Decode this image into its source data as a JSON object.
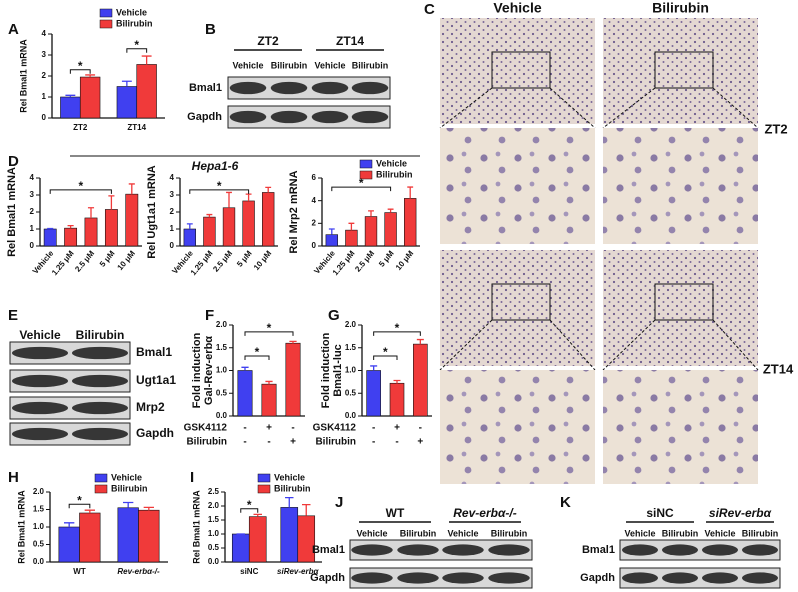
{
  "panel_letters": [
    "A",
    "B",
    "C",
    "D",
    "E",
    "F",
    "G",
    "H",
    "I",
    "J",
    "K"
  ],
  "hepa_label": "Hepa1-6",
  "chart_data": [
    {
      "type": "bar",
      "ylabel": "Rel Bmal1 mRNA",
      "categories": [
        "ZT2",
        "ZT14"
      ],
      "series": [
        {
          "name": "Vehicle",
          "color": "#4040f0",
          "values": [
            1.0,
            1.5
          ],
          "errors": [
            0.08,
            0.25
          ]
        },
        {
          "name": "Bilirubin",
          "color": "#f03a3a",
          "values": [
            1.95,
            2.55
          ],
          "errors": [
            0.1,
            0.4
          ]
        }
      ],
      "ylim": [
        0,
        4
      ],
      "yticks": [
        0,
        1,
        2,
        3,
        4
      ],
      "annotations": [
        "*",
        "*"
      ]
    },
    {
      "type": "bar",
      "ylabel": "Rel Bmal1 mRNA",
      "categories": [
        "Vehicle",
        "1.25 μM",
        "2.5 μM",
        "5 μM",
        "10 μM"
      ],
      "values": [
        1.0,
        1.05,
        1.65,
        2.15,
        3.05
      ],
      "errors": [
        0.03,
        0.15,
        0.6,
        0.8,
        0.6
      ],
      "colors": [
        "#4040f0",
        "#f03a3a",
        "#f03a3a",
        "#f03a3a",
        "#f03a3a"
      ],
      "ylim": [
        0,
        4
      ],
      "yticks": [
        0,
        1,
        2,
        3,
        4
      ],
      "annotations": [
        "*"
      ]
    },
    {
      "type": "bar",
      "ylabel": "Rel Ugt1a1 mRNA",
      "categories": [
        "Vehicle",
        "1.25 μM",
        "2.5 μM",
        "5 μM",
        "10 μM"
      ],
      "values": [
        1.0,
        1.7,
        2.25,
        2.65,
        3.15
      ],
      "errors": [
        0.3,
        0.15,
        0.9,
        0.4,
        0.3
      ],
      "colors": [
        "#4040f0",
        "#f03a3a",
        "#f03a3a",
        "#f03a3a",
        "#f03a3a"
      ],
      "ylim": [
        0,
        4
      ],
      "yticks": [
        0,
        1,
        2,
        3,
        4
      ],
      "annotations": [
        "*"
      ]
    },
    {
      "type": "bar",
      "ylabel": "Rel Mrp2 mRNA",
      "categories": [
        "Vehicle",
        "1.25 μM",
        "2.5 μM",
        "5 μM",
        "10 μM"
      ],
      "values": [
        1.0,
        1.4,
        2.6,
        2.95,
        4.2
      ],
      "errors": [
        0.5,
        0.6,
        0.5,
        0.3,
        1.0
      ],
      "colors": [
        "#4040f0",
        "#f03a3a",
        "#f03a3a",
        "#f03a3a",
        "#f03a3a"
      ],
      "legend": [
        {
          "name": "Vehicle",
          "color": "#4040f0"
        },
        {
          "name": "Bilirubin",
          "color": "#f03a3a"
        }
      ],
      "ylim": [
        0,
        6
      ],
      "yticks": [
        0,
        2,
        4,
        6
      ],
      "annotations": [
        "*"
      ]
    },
    {
      "type": "bar",
      "ylabel": [
        "Fold induction",
        "Gal-Rev-erbα"
      ],
      "values": [
        1.0,
        0.7,
        1.6
      ],
      "errors": [
        0.07,
        0.06,
        0.04
      ],
      "colors": [
        "#4040f0",
        "#f03a3a",
        "#f03a3a"
      ],
      "ylim": [
        0,
        2
      ],
      "yticks": [
        {
          "value": 0,
          "label": "0.0"
        },
        0.5,
        {
          "value": 1,
          "label": "1.0"
        },
        1.5,
        {
          "value": 2,
          "label": "2.0"
        }
      ],
      "treatments": [
        {
          "name": "GSK4112",
          "signs": [
            "-",
            "+",
            "-"
          ]
        },
        {
          "name": "Bilirubin",
          "signs": [
            "-",
            "-",
            "+"
          ]
        }
      ],
      "annotations": [
        "*",
        "*"
      ]
    },
    {
      "type": "bar",
      "ylabel": [
        "Fold induction",
        "Bmal1-luc"
      ],
      "values": [
        1.0,
        0.72,
        1.58
      ],
      "errors": [
        0.1,
        0.06,
        0.1
      ],
      "colors": [
        "#4040f0",
        "#f03a3a",
        "#f03a3a"
      ],
      "ylim": [
        0,
        2
      ],
      "yticks": [
        {
          "value": 0,
          "label": "0.0"
        },
        0.5,
        {
          "value": 1,
          "label": "1.0"
        },
        1.5,
        {
          "value": 2,
          "label": "2.0"
        }
      ],
      "treatments": [
        {
          "name": "GSK4112",
          "signs": [
            "-",
            "+",
            "-"
          ]
        },
        {
          "name": "Bilirubin",
          "signs": [
            "-",
            "-",
            "+"
          ]
        }
      ],
      "annotations": [
        "*",
        "*"
      ]
    },
    {
      "type": "bar",
      "ylabel": "Rel Bmal1 mRNA",
      "categories": [
        "WT",
        "Rev-erbα-/-"
      ],
      "series": [
        {
          "name": "Vehicle",
          "color": "#4040f0",
          "values": [
            1.0,
            1.55
          ],
          "errors": [
            0.12,
            0.15
          ]
        },
        {
          "name": "Bilirubin",
          "color": "#f03a3a",
          "values": [
            1.4,
            1.48
          ],
          "errors": [
            0.08,
            0.08
          ]
        }
      ],
      "ylim": [
        0,
        2
      ],
      "yticks": [
        {
          "value": 0,
          "label": "0.0"
        },
        0.5,
        {
          "value": 1,
          "label": "1.0"
        },
        1.5,
        {
          "value": 2,
          "label": "2.0"
        }
      ],
      "annotations": [
        "*"
      ]
    },
    {
      "type": "bar",
      "ylabel": "Rel Bmal1 mRNA",
      "categories": [
        "siNC",
        "siRev-erbα"
      ],
      "series": [
        {
          "name": "Vehicle",
          "color": "#4040f0",
          "values": [
            1.0,
            1.95
          ],
          "errors": [
            0.0,
            0.35
          ]
        },
        {
          "name": "Bilirubin",
          "color": "#f03a3a",
          "values": [
            1.62,
            1.65
          ],
          "errors": [
            0.08,
            0.4
          ]
        }
      ],
      "ylim": [
        0,
        2.5
      ],
      "yticks": [
        {
          "value": 0,
          "label": "0.0"
        },
        0.5,
        {
          "value": 1,
          "label": "1.0"
        },
        1.5,
        {
          "value": 2,
          "label": "2.0"
        },
        2.5
      ],
      "annotations": [
        "*"
      ]
    }
  ],
  "blots": {
    "B": {
      "groups": [
        "ZT2",
        "ZT14"
      ],
      "lanes": [
        "Vehicle",
        "Bilirubin",
        "Vehicle",
        "Bilirubin"
      ],
      "rows": [
        "Bmal1",
        "Gapdh"
      ]
    },
    "E": {
      "lanes": [
        "Vehicle",
        "Bilirubin"
      ],
      "rows": [
        "Bmal1",
        "Ugt1a1",
        "Mrp2",
        "Gapdh"
      ]
    },
    "J": {
      "groups": [
        "WT",
        "Rev-erbα-/-"
      ],
      "lanes": [
        "Vehicle",
        "Bilirubin",
        "Vehicle",
        "Bilirubin"
      ],
      "rows": [
        "Bmal1",
        "Gapdh"
      ]
    },
    "K": {
      "groups": [
        "siNC",
        "siRev-erbα"
      ],
      "lanes": [
        "Vehicle",
        "Bilirubin",
        "Vehicle",
        "Bilirubin"
      ],
      "rows": [
        "Bmal1",
        "Gapdh"
      ]
    }
  },
  "histology": {
    "columns": [
      "Vehicle",
      "Bilirubin"
    ],
    "rows": [
      "ZT2",
      "ZT14"
    ]
  }
}
